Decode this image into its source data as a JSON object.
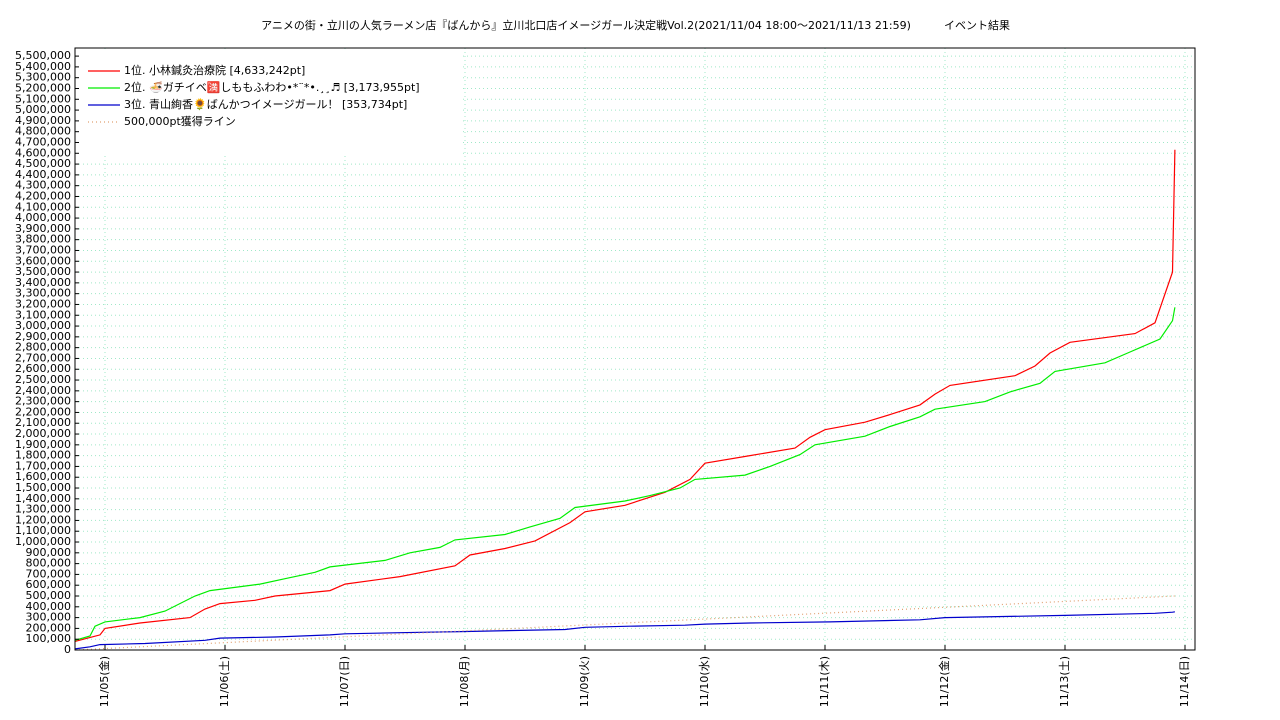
{
  "chart_data": {
    "type": "line",
    "title": "アニメの街・立川の人気ラーメン店『ばんから』立川北口店イメージガール決定戦Vol.2(2021/11/04 18:00～2021/11/13 21:59)",
    "subtitle": "イベント結果",
    "xlim": [
      "2021-11-04T18:00",
      "2021-11-14T02:00"
    ],
    "xticks": [
      {
        "value": "2021-11-05T00:00",
        "label": "11/05(金)"
      },
      {
        "value": "2021-11-06T00:00",
        "label": "11/06(土)"
      },
      {
        "value": "2021-11-07T00:00",
        "label": "11/07(日)"
      },
      {
        "value": "2021-11-08T00:00",
        "label": "11/08(月)"
      },
      {
        "value": "2021-11-09T00:00",
        "label": "11/09(火)"
      },
      {
        "value": "2021-11-10T00:00",
        "label": "11/10(水)"
      },
      {
        "value": "2021-11-11T00:00",
        "label": "11/11(木)"
      },
      {
        "value": "2021-11-12T00:00",
        "label": "11/12(金)"
      },
      {
        "value": "2021-11-13T00:00",
        "label": "11/13(土)"
      },
      {
        "value": "2021-11-14T00:00",
        "label": "11/14(日)"
      }
    ],
    "ylim": [
      0,
      5575000
    ],
    "yticks": [
      0,
      {
        "value": 100000,
        "label": "100,000"
      },
      {
        "value": 200000,
        "label": "200,000"
      },
      {
        "value": 300000,
        "label": "300,000"
      },
      {
        "value": 400000,
        "label": "400,000"
      },
      {
        "value": 500000,
        "label": "500,000"
      },
      {
        "value": 600000,
        "label": "600,000"
      },
      {
        "value": 700000,
        "label": "700,000"
      },
      {
        "value": 800000,
        "label": "800,000"
      },
      {
        "value": 900000,
        "label": "900,000"
      },
      {
        "value": 1000000,
        "label": "1,000,000"
      },
      {
        "value": 1100000,
        "label": "1,100,000"
      },
      {
        "value": 1200000,
        "label": "1,200,000"
      },
      {
        "value": 1300000,
        "label": "1,300,000"
      },
      {
        "value": 1400000,
        "label": "1,400,000"
      },
      {
        "value": 1500000,
        "label": "1,500,000"
      },
      {
        "value": 1600000,
        "label": "1,600,000"
      },
      {
        "value": 1700000,
        "label": "1,700,000"
      },
      {
        "value": 1800000,
        "label": "1,800,000"
      },
      {
        "value": 1900000,
        "label": "1,900,000"
      },
      {
        "value": 2000000,
        "label": "2,000,000"
      },
      {
        "value": 2100000,
        "label": "2,100,000"
      },
      {
        "value": 2200000,
        "label": "2,200,000"
      },
      {
        "value": 2300000,
        "label": "2,300,000"
      },
      {
        "value": 2400000,
        "label": "2,400,000"
      },
      {
        "value": 2500000,
        "label": "2,500,000"
      },
      {
        "value": 2600000,
        "label": "2,600,000"
      },
      {
        "value": 2700000,
        "label": "2,700,000"
      },
      {
        "value": 2800000,
        "label": "2,800,000"
      },
      {
        "value": 2900000,
        "label": "2,900,000"
      },
      {
        "value": 3000000,
        "label": "3,000,000"
      },
      {
        "value": 3100000,
        "label": "3,100,000"
      },
      {
        "value": 3200000,
        "label": "3,200,000"
      },
      {
        "value": 3300000,
        "label": "3,300,000"
      },
      {
        "value": 3400000,
        "label": "3,400,000"
      },
      {
        "value": 3500000,
        "label": "3,500,000"
      },
      {
        "value": 3600000,
        "label": "3,600,000"
      },
      {
        "value": 3700000,
        "label": "3,700,000"
      },
      {
        "value": 3800000,
        "label": "3,800,000"
      },
      {
        "value": 3900000,
        "label": "3,900,000"
      },
      {
        "value": 4000000,
        "label": "4,000,000"
      },
      {
        "value": 4100000,
        "label": "4,100,000"
      },
      {
        "value": 4200000,
        "label": "4,200,000"
      },
      {
        "value": 4300000,
        "label": "4,300,000"
      },
      {
        "value": 4400000,
        "label": "4,400,000"
      },
      {
        "value": 4500000,
        "label": "4,500,000"
      },
      {
        "value": 4600000,
        "label": "4,600,000"
      },
      {
        "value": 4700000,
        "label": "4,700,000"
      },
      {
        "value": 4800000,
        "label": "4,800,000"
      },
      {
        "value": 4900000,
        "label": "4,900,000"
      },
      {
        "value": 5000000,
        "label": "5,000,000"
      },
      {
        "value": 5100000,
        "label": "5,100,000"
      },
      {
        "value": 5200000,
        "label": "5,200,000"
      },
      {
        "value": 5300000,
        "label": "5,300,000"
      },
      {
        "value": 5400000,
        "label": "5,400,000"
      },
      {
        "value": 5500000,
        "label": "5,500,000"
      }
    ],
    "grid": true,
    "legend": "upper left",
    "series": [
      {
        "name": "1位. 小林鍼灸治療院 [4,633,242pt]",
        "color": "#ff0000",
        "x": [
          "2021-11-04T18:00",
          "2021-11-04T23:00",
          "2021-11-05T00:00",
          "2021-11-05T07:00",
          "2021-11-05T17:00",
          "2021-11-05T20:00",
          "2021-11-05T23:00",
          "2021-11-06T06:00",
          "2021-11-06T10:00",
          "2021-11-06T21:00",
          "2021-11-07T00:00",
          "2021-11-07T11:00",
          "2021-11-07T22:00",
          "2021-11-08T01:00",
          "2021-11-08T08:00",
          "2021-11-08T14:00",
          "2021-11-08T21:00",
          "2021-11-09T00:00",
          "2021-11-09T08:00",
          "2021-11-09T16:00",
          "2021-11-09T21:00",
          "2021-11-10T00:00",
          "2021-11-10T09:00",
          "2021-11-10T18:00",
          "2021-11-10T21:00",
          "2021-11-11T00:00",
          "2021-11-11T08:00",
          "2021-11-11T13:00",
          "2021-11-11T19:00",
          "2021-11-11T22:00",
          "2021-11-12T01:00",
          "2021-11-12T14:00",
          "2021-11-12T18:00",
          "2021-11-12T21:00",
          "2021-11-13T01:00",
          "2021-11-13T14:00",
          "2021-11-13T18:00",
          "2021-11-13T21:30",
          "2021-11-13T21:59"
        ],
        "values": [
          80000,
          140000,
          200000,
          250000,
          300000,
          380000,
          430000,
          460000,
          500000,
          550000,
          610000,
          680000,
          780000,
          880000,
          940000,
          1010000,
          1180000,
          1280000,
          1340000,
          1460000,
          1580000,
          1730000,
          1800000,
          1870000,
          1970000,
          2040000,
          2110000,
          2180000,
          2270000,
          2370000,
          2450000,
          2540000,
          2630000,
          2750000,
          2850000,
          2930000,
          3030000,
          3500000,
          4633242
        ]
      },
      {
        "name": "2位. 🍜ガチイベ🈵しももふわわ•*¨*•.¸¸♬ [3,173,955pt]",
        "color": "#00ee00",
        "x": [
          "2021-11-04T18:00",
          "2021-11-04T21:00",
          "2021-11-04T22:00",
          "2021-11-05T00:00",
          "2021-11-05T07:00",
          "2021-11-05T12:00",
          "2021-11-05T18:00",
          "2021-11-05T21:00",
          "2021-11-06T07:00",
          "2021-11-06T12:00",
          "2021-11-06T18:00",
          "2021-11-06T21:00",
          "2021-11-07T08:00",
          "2021-11-07T13:00",
          "2021-11-07T19:00",
          "2021-11-07T22:00",
          "2021-11-08T08:00",
          "2021-11-08T13:00",
          "2021-11-08T19:00",
          "2021-11-08T22:00",
          "2021-11-09T08:00",
          "2021-11-09T13:00",
          "2021-11-09T19:00",
          "2021-11-09T22:00",
          "2021-11-10T08:00",
          "2021-11-10T13:00",
          "2021-11-10T19:00",
          "2021-11-10T22:00",
          "2021-11-11T08:00",
          "2021-11-11T13:00",
          "2021-11-11T19:00",
          "2021-11-11T22:00",
          "2021-11-12T08:00",
          "2021-11-12T13:00",
          "2021-11-12T19:00",
          "2021-11-12T22:00",
          "2021-11-13T08:00",
          "2021-11-13T13:00",
          "2021-11-13T19:00",
          "2021-11-13T21:30",
          "2021-11-13T21:59"
        ],
        "values": [
          90000,
          130000,
          220000,
          260000,
          300000,
          360000,
          500000,
          550000,
          610000,
          660000,
          720000,
          770000,
          830000,
          900000,
          950000,
          1020000,
          1070000,
          1140000,
          1220000,
          1320000,
          1380000,
          1430000,
          1500000,
          1580000,
          1620000,
          1700000,
          1810000,
          1900000,
          1980000,
          2070000,
          2160000,
          2230000,
          2300000,
          2390000,
          2470000,
          2580000,
          2660000,
          2760000,
          2880000,
          3050000,
          3173955
        ]
      },
      {
        "name": "3位. 青山絢香🌻ばんかつイメージガール！ [353,734pt]",
        "color": "#0000cc",
        "x": [
          "2021-11-04T18:00",
          "2021-11-04T21:00",
          "2021-11-04T23:00",
          "2021-11-05T08:00",
          "2021-11-05T20:00",
          "2021-11-05T23:00",
          "2021-11-06T10:00",
          "2021-11-06T21:00",
          "2021-11-07T00:00",
          "2021-11-07T11:00",
          "2021-11-07T23:00",
          "2021-11-08T20:00",
          "2021-11-09T00:00",
          "2021-11-09T09:00",
          "2021-11-09T20:00",
          "2021-11-10T00:00",
          "2021-11-10T09:00",
          "2021-11-11T01:00",
          "2021-11-11T19:00",
          "2021-11-12T00:00",
          "2021-11-13T00:00",
          "2021-11-13T18:00",
          "2021-11-13T21:30",
          "2021-11-13T21:59"
        ],
        "values": [
          10000,
          30000,
          50000,
          60000,
          90000,
          110000,
          120000,
          140000,
          150000,
          160000,
          170000,
          190000,
          210000,
          220000,
          230000,
          240000,
          250000,
          260000,
          280000,
          300000,
          320000,
          340000,
          350000,
          353734
        ]
      },
      {
        "name": "500,000pt獲得ライン",
        "color": "#e0a070",
        "dotted": true,
        "x": [
          "2021-11-04T18:00",
          "2021-11-13T21:59"
        ],
        "values": [
          0,
          500000
        ]
      }
    ]
  }
}
